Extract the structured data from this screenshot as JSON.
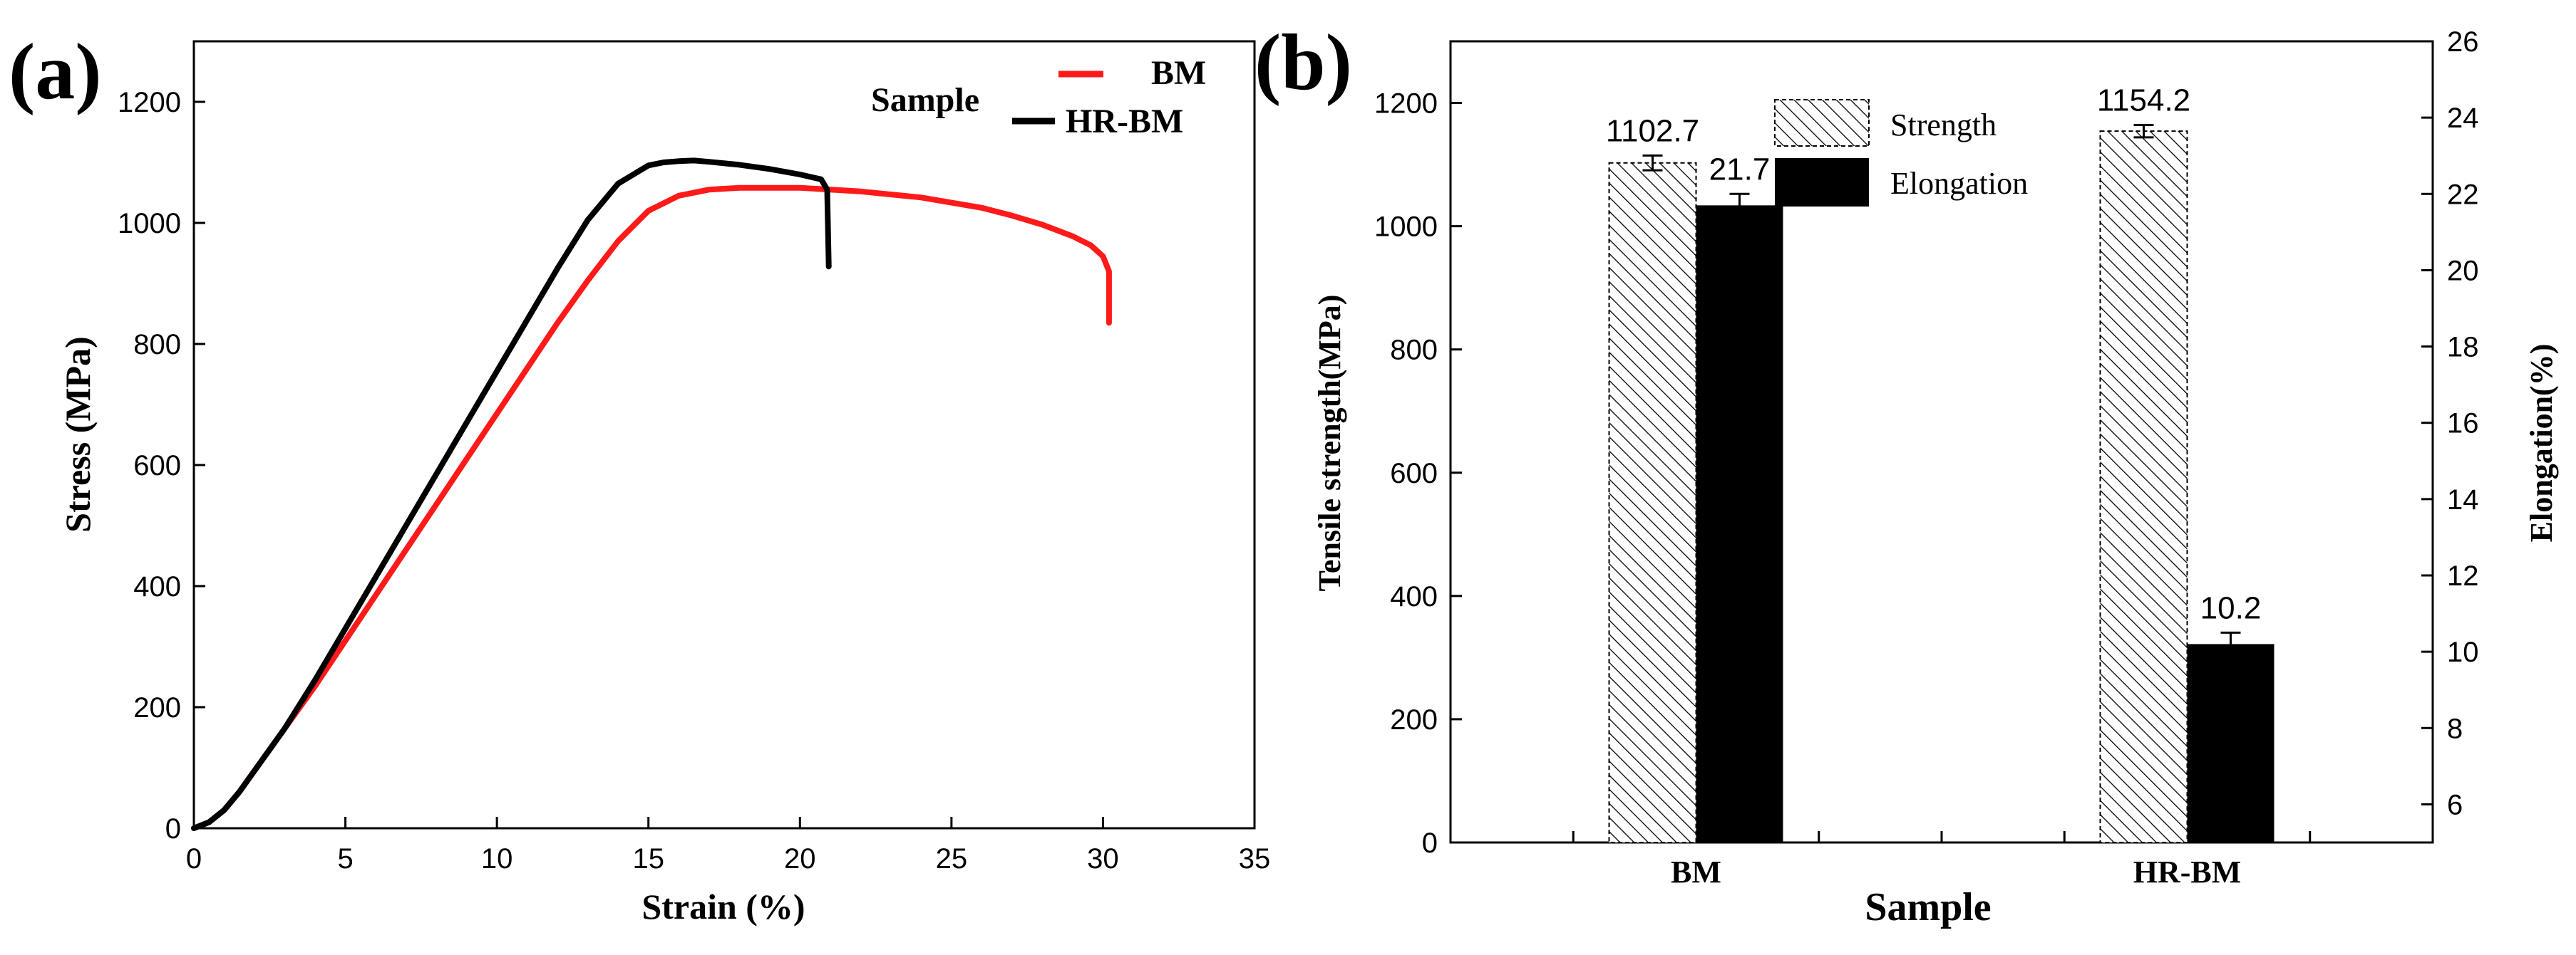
{
  "colors": {
    "bm": "#ff1a1a",
    "hrbm": "#000000",
    "axis": "#000000"
  },
  "chart_data": [
    {
      "type": "line",
      "panel_label": "(a)",
      "xlabel": "Strain (%)",
      "ylabel": "Stress (MPa)",
      "xlim": [
        0,
        35
      ],
      "ylim": [
        0,
        1300
      ],
      "x_ticks": [
        0,
        5,
        10,
        15,
        20,
        25,
        30,
        35
      ],
      "y_ticks": [
        0,
        200,
        400,
        600,
        800,
        1000,
        1200
      ],
      "legend": {
        "title": "Sample",
        "placement": "top-right"
      },
      "series": [
        {
          "name": "BM",
          "color": "#ff1a1a",
          "x": [
            0,
            0.5,
            1,
            1.5,
            2,
            2.5,
            3,
            4,
            5,
            6,
            7,
            8,
            9,
            10,
            11,
            12,
            13,
            14,
            15,
            16,
            17,
            18,
            20,
            22,
            24,
            26,
            27,
            28,
            29,
            29.6,
            30.0,
            30.2,
            30.2
          ],
          "y": [
            0,
            10,
            30,
            60,
            95,
            130,
            165,
            235,
            310,
            385,
            460,
            535,
            610,
            685,
            760,
            835,
            905,
            970,
            1020,
            1045,
            1055,
            1058,
            1058,
            1052,
            1042,
            1025,
            1012,
            997,
            978,
            963,
            945,
            920,
            835
          ]
        },
        {
          "name": "HR-BM",
          "color": "#000000",
          "x": [
            0,
            0.5,
            1,
            1.5,
            2,
            2.5,
            3,
            4,
            5,
            6,
            7,
            8,
            9,
            10,
            11,
            12,
            13,
            14,
            15,
            15.5,
            16,
            16.5,
            17,
            18,
            19,
            20,
            20.7,
            20.9,
            20.95
          ],
          "y": [
            0,
            10,
            30,
            60,
            95,
            130,
            165,
            245,
            330,
            415,
            500,
            585,
            670,
            755,
            840,
            925,
            1005,
            1065,
            1095,
            1100,
            1102,
            1103,
            1101,
            1096,
            1089,
            1080,
            1072,
            1055,
            928
          ]
        }
      ]
    },
    {
      "type": "bar",
      "panel_label": "(b)",
      "xlabel": "Sample",
      "ylabel": "Tensile strength(MPa)",
      "y2label": "Elongation(%)",
      "categories": [
        "BM",
        "HR-BM"
      ],
      "ylim": [
        0,
        1300
      ],
      "y2lim": [
        5,
        26
      ],
      "y_ticks": [
        0,
        200,
        400,
        600,
        800,
        1000,
        1200
      ],
      "y2_ticks": [
        6,
        8,
        10,
        12,
        14,
        16,
        18,
        20,
        22,
        24,
        26
      ],
      "legend_placement": "top-center",
      "series": [
        {
          "name": "Strength",
          "axis": "left",
          "pattern": "hatched",
          "values": [
            1102.7,
            1154.2
          ],
          "errors": [
            12,
            10
          ],
          "labels": [
            "1102.7",
            "1154.2"
          ]
        },
        {
          "name": "Elongation",
          "axis": "right",
          "pattern": "solid",
          "values": [
            21.7,
            10.2
          ],
          "errors": [
            0.3,
            0.3
          ],
          "labels": [
            "21.7",
            "10.2"
          ]
        }
      ]
    }
  ]
}
